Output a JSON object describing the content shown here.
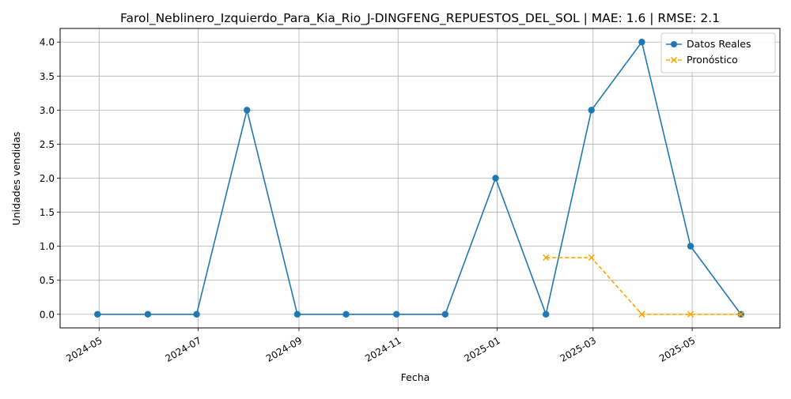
{
  "chart_data": {
    "type": "line",
    "title": "Farol_Neblinero_Izquierdo_Para_Kia_Rio_J-DINGFENG_REPUESTOS_DEL_SOL | MAE: 1.6 | RMSE: 2.1",
    "xlabel": "Fecha",
    "ylabel": "Unidades vendidas",
    "xlim": [
      "2024-04-07",
      "2025-06-24"
    ],
    "ylim": [
      -0.2,
      4.2
    ],
    "x_ticks": [
      "2024-05",
      "2024-07",
      "2024-09",
      "2024-11",
      "2025-01",
      "2025-03",
      "2025-05"
    ],
    "y_ticks": [
      "0.0",
      "0.5",
      "1.0",
      "1.5",
      "2.0",
      "2.5",
      "3.0",
      "3.5",
      "4.0"
    ],
    "grid": true,
    "legend_position": "top-right",
    "series": [
      {
        "name": "Datos Reales",
        "color": "#1f77b4",
        "line_style": "solid",
        "marker": "circle",
        "x": [
          "2024-04-30",
          "2024-05-31",
          "2024-06-30",
          "2024-07-31",
          "2024-08-31",
          "2024-09-30",
          "2024-10-31",
          "2024-11-30",
          "2024-12-31",
          "2025-01-31",
          "2025-02-28",
          "2025-03-31",
          "2025-04-30",
          "2025-05-31"
        ],
        "values": [
          0,
          0,
          0,
          3,
          0,
          0,
          0,
          0,
          2,
          0,
          3,
          4,
          1,
          0
        ]
      },
      {
        "name": "Pronóstico",
        "color": "#ffa500",
        "line_style": "dashed",
        "marker": "x",
        "x": [
          "2025-01-31",
          "2025-02-28",
          "2025-03-31",
          "2025-04-30",
          "2025-05-31"
        ],
        "values": [
          0.833,
          0.833,
          0,
          0,
          0
        ]
      }
    ]
  }
}
